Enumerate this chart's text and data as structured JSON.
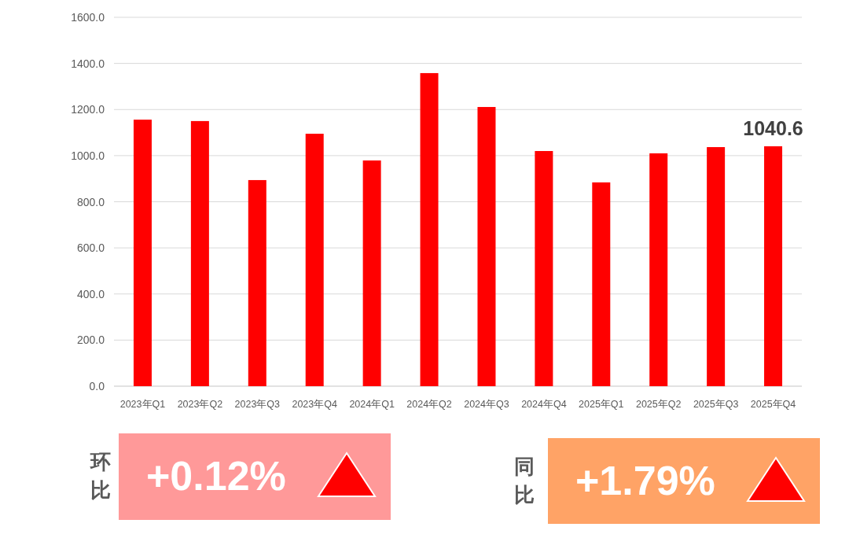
{
  "chart_data": {
    "type": "bar",
    "categories": [
      "2023年Q1",
      "2023年Q2",
      "2023年Q3",
      "2023年Q4",
      "2024年Q1",
      "2024年Q2",
      "2024年Q3",
      "2024年Q4",
      "2025年Q1",
      "2025年Q2",
      "2025年Q3",
      "2025年Q4"
    ],
    "values": [
      1156,
      1150,
      894,
      1095,
      979,
      1358,
      1211,
      1020,
      884,
      1010,
      1037,
      1040.6
    ],
    "value_labels": [
      null,
      null,
      null,
      null,
      null,
      null,
      null,
      null,
      null,
      null,
      null,
      "1040.6"
    ],
    "color": "#ff0000",
    "ylim": [
      0,
      1600
    ],
    "yticks": [
      {
        "value": 0,
        "label": "0.0"
      },
      {
        "value": 200,
        "label": "200.0"
      },
      {
        "value": 400,
        "label": "400.0"
      },
      {
        "value": 600,
        "label": "600.0"
      },
      {
        "value": 800,
        "label": "800.0"
      },
      {
        "value": 1000,
        "label": "1000.0"
      },
      {
        "value": 1200,
        "label": "1200.0"
      },
      {
        "value": 1400,
        "label": "1400.0"
      },
      {
        "value": 1600,
        "label": "1600.0"
      }
    ],
    "grid": "y",
    "annotations": [
      "环比",
      "+0.12%",
      "同比",
      "+1.79%"
    ]
  }
}
